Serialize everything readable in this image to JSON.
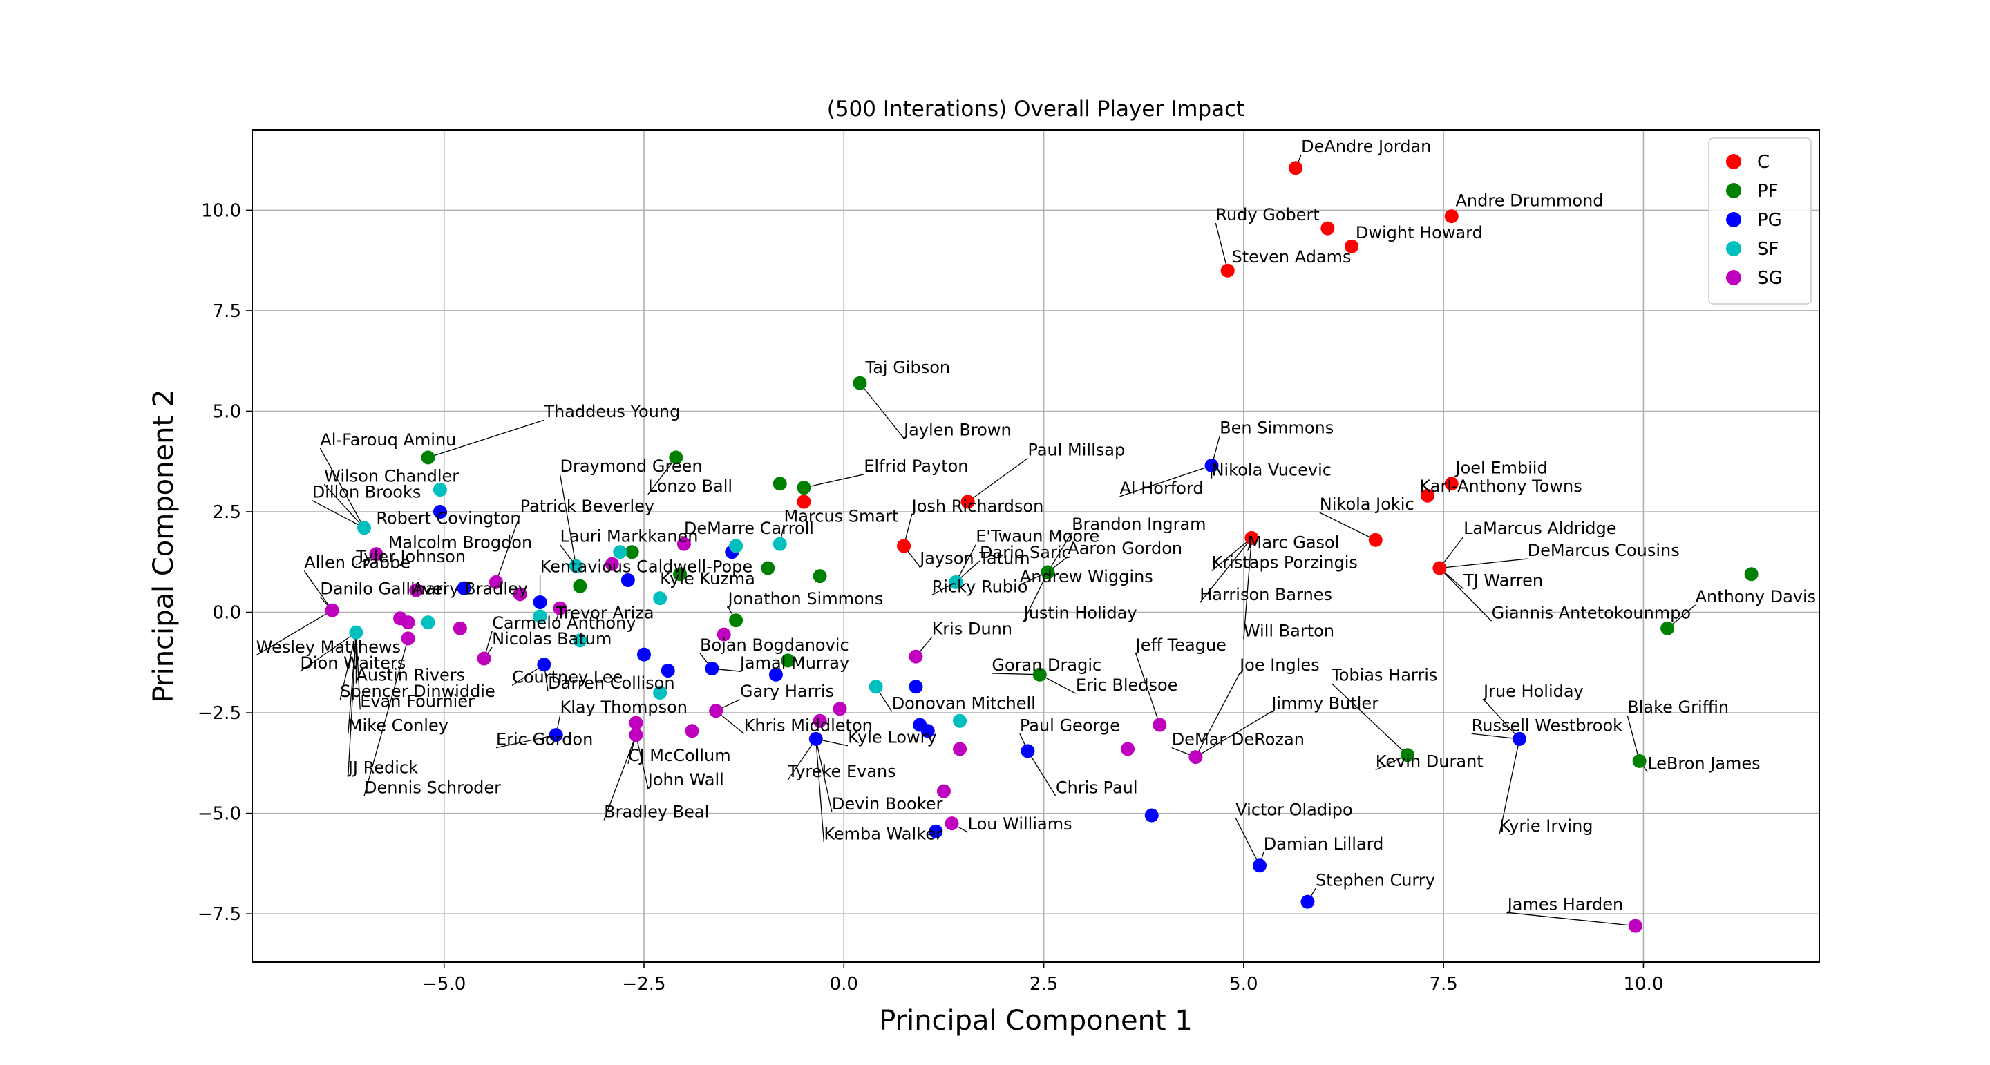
{
  "chart_data": {
    "type": "scatter",
    "title": "(500 Interations) Overall Player Impact",
    "xlabel": "Principal Component 1",
    "ylabel": "Principal Component 2",
    "xlim": [
      -7.4,
      12.2
    ],
    "ylim": [
      -8.7,
      12.0
    ],
    "xticks": [
      -5.0,
      -2.5,
      0.0,
      2.5,
      5.0,
      7.5,
      10.0
    ],
    "yticks": [
      -7.5,
      -5.0,
      -2.5,
      0.0,
      2.5,
      5.0,
      7.5,
      10.0
    ],
    "xtick_labels": [
      "−5.0",
      "−2.5",
      "0.0",
      "2.5",
      "5.0",
      "7.5",
      "10.0"
    ],
    "ytick_labels": [
      "−7.5",
      "−5.0",
      "−2.5",
      "0.0",
      "2.5",
      "5.0",
      "7.5",
      "10.0"
    ],
    "grid": true,
    "legend": "top-right",
    "series": [
      {
        "name": "C",
        "color": "#ff0000",
        "points": [
          {
            "x": 5.65,
            "y": 11.05
          },
          {
            "x": 6.05,
            "y": 9.55
          },
          {
            "x": 7.6,
            "y": 9.85
          },
          {
            "x": 6.35,
            "y": 9.1
          },
          {
            "x": 4.8,
            "y": 8.5
          },
          {
            "x": 7.6,
            "y": 3.2
          },
          {
            "x": 7.3,
            "y": 2.9
          },
          {
            "x": 5.1,
            "y": 1.85
          },
          {
            "x": 6.65,
            "y": 1.8
          },
          {
            "x": 7.45,
            "y": 1.1
          },
          {
            "x": 1.55,
            "y": 2.75
          },
          {
            "x": -0.5,
            "y": 2.75
          },
          {
            "x": 0.75,
            "y": 1.65
          }
        ]
      },
      {
        "name": "PF",
        "color": "#008000",
        "points": [
          {
            "x": 0.2,
            "y": 5.7
          },
          {
            "x": -5.2,
            "y": 3.85
          },
          {
            "x": -2.1,
            "y": 3.85
          },
          {
            "x": -0.8,
            "y": 3.2
          },
          {
            "x": -0.5,
            "y": 3.1
          },
          {
            "x": -2.65,
            "y": 1.5
          },
          {
            "x": -3.3,
            "y": 0.65
          },
          {
            "x": -2.05,
            "y": 0.95
          },
          {
            "x": -0.95,
            "y": 1.1
          },
          {
            "x": -0.3,
            "y": 0.9
          },
          {
            "x": 2.55,
            "y": 1.0
          },
          {
            "x": -1.35,
            "y": -0.2
          },
          {
            "x": -0.7,
            "y": -1.2
          },
          {
            "x": 2.45,
            "y": -1.55
          },
          {
            "x": 11.35,
            "y": 0.95
          },
          {
            "x": 10.3,
            "y": -0.4
          },
          {
            "x": 7.05,
            "y": -3.55
          },
          {
            "x": 9.95,
            "y": -3.7
          }
        ]
      },
      {
        "name": "PG",
        "color": "#0000ff",
        "points": [
          {
            "x": 4.6,
            "y": 3.65
          },
          {
            "x": -5.05,
            "y": 2.5
          },
          {
            "x": -4.75,
            "y": 0.6
          },
          {
            "x": -3.8,
            "y": 0.25
          },
          {
            "x": -2.7,
            "y": 0.8
          },
          {
            "x": -1.4,
            "y": 1.5
          },
          {
            "x": -2.5,
            "y": -1.05
          },
          {
            "x": -2.2,
            "y": -1.45
          },
          {
            "x": -1.65,
            "y": -1.4
          },
          {
            "x": -0.85,
            "y": -1.55
          },
          {
            "x": 0.9,
            "y": -1.85
          },
          {
            "x": -3.75,
            "y": -1.3
          },
          {
            "x": -3.6,
            "y": -3.05
          },
          {
            "x": -0.35,
            "y": -3.15
          },
          {
            "x": 0.95,
            "y": -2.8
          },
          {
            "x": 1.05,
            "y": -2.95
          },
          {
            "x": 2.3,
            "y": -3.45
          },
          {
            "x": 3.85,
            "y": -5.05
          },
          {
            "x": 1.15,
            "y": -5.45
          },
          {
            "x": 8.45,
            "y": -3.15
          },
          {
            "x": 5.2,
            "y": -6.3
          },
          {
            "x": 5.8,
            "y": -7.2
          }
        ]
      },
      {
        "name": "SF",
        "color": "#00bfbf",
        "points": [
          {
            "x": -5.05,
            "y": 3.05
          },
          {
            "x": -6.0,
            "y": 2.1
          },
          {
            "x": -2.8,
            "y": 1.5
          },
          {
            "x": -1.35,
            "y": 1.65
          },
          {
            "x": -0.8,
            "y": 1.7
          },
          {
            "x": -3.35,
            "y": 1.15
          },
          {
            "x": -2.3,
            "y": 0.35
          },
          {
            "x": 1.4,
            "y": 0.75
          },
          {
            "x": -3.8,
            "y": -0.1
          },
          {
            "x": -5.2,
            "y": -0.25
          },
          {
            "x": -3.3,
            "y": -0.7
          },
          {
            "x": -6.1,
            "y": -0.5
          },
          {
            "x": -2.3,
            "y": -2.0
          },
          {
            "x": 0.4,
            "y": -1.85
          },
          {
            "x": 1.45,
            "y": -2.7
          }
        ]
      },
      {
        "name": "SG",
        "color": "#bf00bf",
        "points": [
          {
            "x": -5.85,
            "y": 1.45
          },
          {
            "x": -2.0,
            "y": 1.7
          },
          {
            "x": -2.9,
            "y": 1.2
          },
          {
            "x": -4.35,
            "y": 0.75
          },
          {
            "x": -4.05,
            "y": 0.45
          },
          {
            "x": -5.35,
            "y": 0.55
          },
          {
            "x": -6.4,
            "y": 0.05
          },
          {
            "x": -5.55,
            "y": -0.15
          },
          {
            "x": -5.45,
            "y": -0.25
          },
          {
            "x": -3.55,
            "y": 0.1
          },
          {
            "x": -4.8,
            "y": -0.4
          },
          {
            "x": -5.45,
            "y": -0.65
          },
          {
            "x": -4.5,
            "y": -1.15
          },
          {
            "x": -1.5,
            "y": -0.55
          },
          {
            "x": 0.9,
            "y": -1.1
          },
          {
            "x": -1.6,
            "y": -2.45
          },
          {
            "x": -0.05,
            "y": -2.4
          },
          {
            "x": -0.3,
            "y": -2.7
          },
          {
            "x": -2.6,
            "y": -2.75
          },
          {
            "x": -2.6,
            "y": -3.05
          },
          {
            "x": -1.9,
            "y": -2.95
          },
          {
            "x": 3.95,
            "y": -2.8
          },
          {
            "x": 3.55,
            "y": -3.4
          },
          {
            "x": 1.45,
            "y": -3.4
          },
          {
            "x": 4.4,
            "y": -3.6
          },
          {
            "x": 1.25,
            "y": -4.45
          },
          {
            "x": 1.35,
            "y": -5.25
          },
          {
            "x": 9.9,
            "y": -7.8
          }
        ]
      }
    ],
    "annotations": [
      {
        "text": "DeAndre Jordan",
        "x": 5.72,
        "y": 11.45
      },
      {
        "text": "Rudy Gobert",
        "x": 4.65,
        "y": 9.75
      },
      {
        "text": "Andre Drummond",
        "x": 7.65,
        "y": 10.1
      },
      {
        "text": "Dwight Howard",
        "x": 6.4,
        "y": 9.3
      },
      {
        "text": "Steven Adams",
        "x": 4.85,
        "y": 8.7
      },
      {
        "text": "Taj Gibson",
        "x": 0.27,
        "y": 5.95
      },
      {
        "text": "Ben Simmons",
        "x": 4.7,
        "y": 4.45
      },
      {
        "text": "Thaddeus Young",
        "x": -3.75,
        "y": 4.85
      },
      {
        "text": "Jaylen Brown",
        "x": 0.75,
        "y": 4.4
      },
      {
        "text": "Paul Millsap",
        "x": 2.3,
        "y": 3.9
      },
      {
        "text": "Al-Farouq Aminu",
        "x": -6.55,
        "y": 4.15
      },
      {
        "text": "Nikola Vucevic",
        "x": 4.6,
        "y": 3.4
      },
      {
        "text": "Joel Embiid",
        "x": 7.65,
        "y": 3.45
      },
      {
        "text": "Karl-Anthony Towns",
        "x": 7.2,
        "y": 3.0
      },
      {
        "text": "Draymond Green",
        "x": -3.55,
        "y": 3.5
      },
      {
        "text": "Elfrid Payton",
        "x": 0.25,
        "y": 3.5
      },
      {
        "text": "Wilson Chandler",
        "x": -6.5,
        "y": 3.25
      },
      {
        "text": "Lonzo Ball",
        "x": -2.45,
        "y": 3.0
      },
      {
        "text": "Al Horford",
        "x": 3.45,
        "y": 2.95
      },
      {
        "text": "Dillon Brooks",
        "x": -6.65,
        "y": 2.85
      },
      {
        "text": "Nikola Jokic",
        "x": 5.95,
        "y": 2.55
      },
      {
        "text": "Patrick Beverley",
        "x": -4.05,
        "y": 2.5
      },
      {
        "text": "Josh Richardson",
        "x": 0.85,
        "y": 2.5
      },
      {
        "text": "Robert Covington",
        "x": -5.85,
        "y": 2.2
      },
      {
        "text": "Marcus Smart",
        "x": -0.75,
        "y": 2.25
      },
      {
        "text": "Brandon Ingram",
        "x": 2.85,
        "y": 2.05
      },
      {
        "text": "LaMarcus Aldridge",
        "x": 7.75,
        "y": 1.95
      },
      {
        "text": "DeMarre Carroll",
        "x": -2.0,
        "y": 1.95
      },
      {
        "text": "Lauri Markkanen",
        "x": -3.55,
        "y": 1.75
      },
      {
        "text": "E'Twaun Moore",
        "x": 1.65,
        "y": 1.75
      },
      {
        "text": "Malcolm Brogdon",
        "x": -5.7,
        "y": 1.6
      },
      {
        "text": "Marc Gasol",
        "x": 5.05,
        "y": 1.6
      },
      {
        "text": "DeMarcus Cousins",
        "x": 8.55,
        "y": 1.4
      },
      {
        "text": "Dario Saric",
        "x": 1.7,
        "y": 1.35
      },
      {
        "text": "Aaron Gordon",
        "x": 2.8,
        "y": 1.45
      },
      {
        "text": "Tyler Johnson",
        "x": -6.1,
        "y": 1.25
      },
      {
        "text": "Jayson Tatum",
        "x": 0.95,
        "y": 1.2
      },
      {
        "text": "Kristaps Porzingis",
        "x": 4.6,
        "y": 1.1
      },
      {
        "text": "Allen Crabbe",
        "x": -6.75,
        "y": 1.1
      },
      {
        "text": "Kentavious Caldwell-Pope",
        "x": -3.8,
        "y": 1.0
      },
      {
        "text": "Andrew Wiggins",
        "x": 2.2,
        "y": 0.75
      },
      {
        "text": "Kyle Kuzma",
        "x": -2.3,
        "y": 0.7
      },
      {
        "text": "TJ Warren",
        "x": 7.75,
        "y": 0.65
      },
      {
        "text": "Danilo Gallinari",
        "x": -6.55,
        "y": 0.45
      },
      {
        "text": "Avery Bradley",
        "x": -5.4,
        "y": 0.45
      },
      {
        "text": "Ricky Rubio",
        "x": 1.1,
        "y": 0.5
      },
      {
        "text": "Jonathon Simmons",
        "x": -1.45,
        "y": 0.2
      },
      {
        "text": "Harrison Barnes",
        "x": 4.45,
        "y": 0.3
      },
      {
        "text": "Anthony Davis",
        "x": 10.65,
        "y": 0.25
      },
      {
        "text": "Trevor Ariza",
        "x": -3.6,
        "y": -0.15
      },
      {
        "text": "Justin Holiday",
        "x": 2.25,
        "y": -0.15
      },
      {
        "text": "Giannis Antetokounmpo",
        "x": 8.1,
        "y": -0.15
      },
      {
        "text": "Carmelo Anthony",
        "x": -4.4,
        "y": -0.4
      },
      {
        "text": "Kris Dunn",
        "x": 1.1,
        "y": -0.55
      },
      {
        "text": "Will Barton",
        "x": 5.0,
        "y": -0.6
      },
      {
        "text": "Wesley Matthews",
        "x": -7.35,
        "y": -1.0
      },
      {
        "text": "Nicolas Batum",
        "x": -4.4,
        "y": -0.8
      },
      {
        "text": "Bojan Bogdanovic",
        "x": -1.8,
        "y": -0.95
      },
      {
        "text": "Jeff Teague",
        "x": 3.65,
        "y": -0.95
      },
      {
        "text": "Dion Waiters",
        "x": -6.8,
        "y": -1.4
      },
      {
        "text": "Jamal Murray",
        "x": -1.3,
        "y": -1.4
      },
      {
        "text": "Goran Dragic",
        "x": 1.85,
        "y": -1.45
      },
      {
        "text": "Joe Ingles",
        "x": 4.95,
        "y": -1.45
      },
      {
        "text": "Austin Rivers",
        "x": -6.1,
        "y": -1.7
      },
      {
        "text": "Tobias Harris",
        "x": 6.1,
        "y": -1.7
      },
      {
        "text": "Courtney Lee",
        "x": -4.15,
        "y": -1.75
      },
      {
        "text": "Darren Collison",
        "x": -3.7,
        "y": -1.9
      },
      {
        "text": "Eric Bledsoe",
        "x": 2.9,
        "y": -1.95
      },
      {
        "text": "Spencer Dinwiddie",
        "x": -6.3,
        "y": -2.1
      },
      {
        "text": "Gary Harris",
        "x": -1.3,
        "y": -2.1
      },
      {
        "text": "Jrue Holiday",
        "x": 8.0,
        "y": -2.1
      },
      {
        "text": "Evan Fournier",
        "x": -6.05,
        "y": -2.35
      },
      {
        "text": "Donovan Mitchell",
        "x": 0.6,
        "y": -2.4
      },
      {
        "text": "Jimmy Butler",
        "x": 5.35,
        "y": -2.4
      },
      {
        "text": "Blake Griffin",
        "x": 9.8,
        "y": -2.5
      },
      {
        "text": "Klay Thompson",
        "x": -3.55,
        "y": -2.5
      },
      {
        "text": "Mike Conley",
        "x": -6.2,
        "y": -2.95
      },
      {
        "text": "Khris Middleton",
        "x": -1.25,
        "y": -2.95
      },
      {
        "text": "Paul George",
        "x": 2.2,
        "y": -2.95
      },
      {
        "text": "Russell Westbrook",
        "x": 7.85,
        "y": -2.95
      },
      {
        "text": "Eric Gordon",
        "x": -4.35,
        "y": -3.3
      },
      {
        "text": "Kyle Lowry",
        "x": 0.05,
        "y": -3.25
      },
      {
        "text": "DeMar DeRozan",
        "x": 4.1,
        "y": -3.3
      },
      {
        "text": "CJ McCollum",
        "x": -2.7,
        "y": -3.7
      },
      {
        "text": "Kevin Durant",
        "x": 6.65,
        "y": -3.85
      },
      {
        "text": "LeBron James",
        "x": 10.05,
        "y": -3.9
      },
      {
        "text": "JJ Redick",
        "x": -6.2,
        "y": -4.0
      },
      {
        "text": "Tyreke Evans",
        "x": -0.7,
        "y": -4.1
      },
      {
        "text": "John Wall",
        "x": -2.45,
        "y": -4.3
      },
      {
        "text": "Dennis Schroder",
        "x": -6.0,
        "y": -4.5
      },
      {
        "text": "Chris Paul",
        "x": 2.65,
        "y": -4.5
      },
      {
        "text": "Devin Booker",
        "x": -0.15,
        "y": -4.9
      },
      {
        "text": "Bradley Beal",
        "x": -3.0,
        "y": -5.1
      },
      {
        "text": "Victor Oladipo",
        "x": 4.9,
        "y": -5.05
      },
      {
        "text": "Lou Williams",
        "x": 1.55,
        "y": -5.4
      },
      {
        "text": "Kyrie Irving",
        "x": 8.2,
        "y": -5.45
      },
      {
        "text": "Kemba Walker",
        "x": -0.25,
        "y": -5.65
      },
      {
        "text": "Damian Lillard",
        "x": 5.25,
        "y": -5.9
      },
      {
        "text": "Stephen Curry",
        "x": 5.9,
        "y": -6.8
      },
      {
        "text": "James Harden",
        "x": 8.3,
        "y": -7.4
      }
    ]
  }
}
